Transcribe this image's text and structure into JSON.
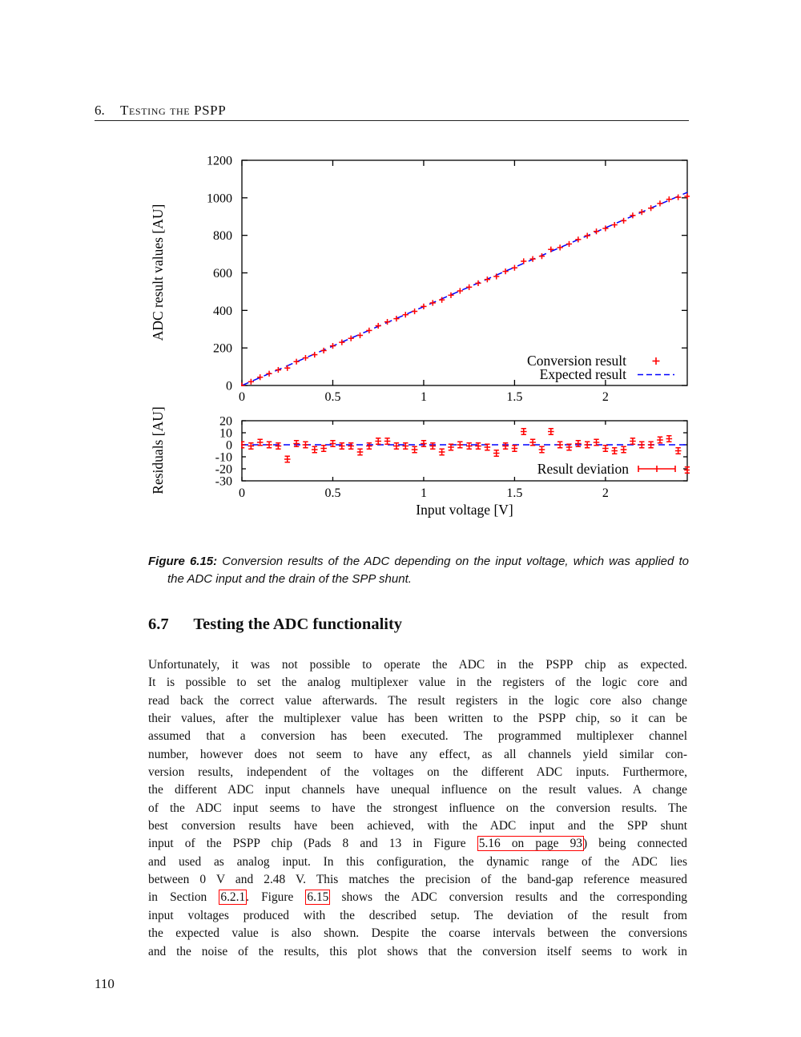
{
  "header": {
    "chapter_number": "6.",
    "chapter_title": "Testing the PSPP"
  },
  "figure": {
    "caption_label": "Figure 6.15:",
    "caption_line1": "Conversion results of the ADC depending on the input voltage, which was applied to",
    "caption_line2": "the ADC input and the drain of the SPP shunt."
  },
  "section": {
    "number": "6.7",
    "title": "Testing the ADC functionality"
  },
  "paragraph": {
    "lines": [
      [
        {
          "t": "Unfortunately, it was not possible to operate the ADC in the PSPP chip as expected."
        }
      ],
      [
        {
          "t": "It is possible to set the analog multiplexer value in the registers of the logic core and"
        }
      ],
      [
        {
          "t": "read back the correct value afterwards. The result registers in the logic core also change"
        }
      ],
      [
        {
          "t": "their values, after the multiplexer value has been written to the PSPP chip, so it can be"
        }
      ],
      [
        {
          "t": "assumed that a conversion has been executed. The programmed multiplexer channel"
        }
      ],
      [
        {
          "t": "number, however does not seem to have any effect, as all channels yield similar con-"
        }
      ],
      [
        {
          "t": "version results, independent of the voltages on the different ADC inputs. Furthermore,"
        }
      ],
      [
        {
          "t": "the different ADC input channels have unequal influence on the result values. A change"
        }
      ],
      [
        {
          "t": "of the ADC input seems to have the strongest influence on the conversion results. The"
        }
      ],
      [
        {
          "t": "best conversion results have been achieved, with the ADC input and the SPP shunt"
        }
      ],
      [
        {
          "t": "input of the PSPP chip (Pads 8 and 13 in Figure "
        },
        {
          "t": "5.16 on page 93",
          "link": true
        },
        {
          "t": ") being connected"
        }
      ],
      [
        {
          "t": "and used as analog input. In this configuration, the dynamic range of the ADC lies"
        }
      ],
      [
        {
          "t": "between 0 V and 2.48 V. This matches the precision of the band-gap reference measured"
        }
      ],
      [
        {
          "t": "in Section "
        },
        {
          "t": "6.2.1",
          "link": true
        },
        {
          "t": ". Figure "
        },
        {
          "t": "6.15",
          "link": true
        },
        {
          "t": " shows the ADC conversion results and the corresponding"
        }
      ],
      [
        {
          "t": "input voltages produced with the described setup. The deviation of the result from"
        }
      ],
      [
        {
          "t": "the expected value is also shown. Despite the coarse intervals between the conversions"
        }
      ],
      [
        {
          "t": "and the noise of the results, this plot shows that the conversion itself seems to work in"
        }
      ]
    ]
  },
  "page_number": "110",
  "colors": {
    "data_red": "#ff0000",
    "data_blue": "#0000ff",
    "link_box": "#ff0000",
    "text": "#111111"
  },
  "chart_data": [
    {
      "type": "scatter",
      "title": "",
      "xlabel": "",
      "ylabel": "ADC result values [AU]",
      "xlim": [
        0,
        2.45
      ],
      "ylim": [
        0,
        1200
      ],
      "xticks": [
        "0",
        "0.5",
        "1",
        "1.5",
        "2"
      ],
      "xtick_values": [
        0,
        0.5,
        1,
        1.5,
        2
      ],
      "yticks": [
        "0",
        "200",
        "400",
        "600",
        "800",
        "1000",
        "1200"
      ],
      "ytick_values": [
        0,
        200,
        400,
        600,
        800,
        1000,
        1200
      ],
      "grid": false,
      "legend_position": "bottom-right",
      "series": [
        {
          "name": "Conversion result",
          "type": "points",
          "marker": "plus",
          "color": "#ff0000",
          "x": [
            0,
            0.05,
            0.1,
            0.15,
            0.2,
            0.25,
            0.3,
            0.35,
            0.4,
            0.45,
            0.5,
            0.55,
            0.6,
            0.65,
            0.7,
            0.75,
            0.8,
            0.85,
            0.9,
            0.95,
            1,
            1.05,
            1.1,
            1.15,
            1.2,
            1.25,
            1.3,
            1.35,
            1.4,
            1.45,
            1.5,
            1.55,
            1.6,
            1.65,
            1.7,
            1.75,
            1.8,
            1.85,
            1.9,
            1.95,
            2,
            2.05,
            2.1,
            2.15,
            2.2,
            2.25,
            2.3,
            2.35,
            2.4,
            2.45
          ],
          "y": [
            0,
            20,
            44,
            63,
            83,
            93,
            127,
            147,
            164,
            186,
            211,
            230,
            251,
            267,
            293,
            318,
            339,
            356,
            377,
            395,
            421,
            440,
            456,
            481,
            504,
            524,
            545,
            565,
            581,
            608,
            627,
            662,
            674,
            689,
            725,
            735,
            754,
            778,
            798,
            821,
            837,
            856,
            878,
            906,
            924,
            945,
            970,
            992,
            1003,
            1008
          ]
        },
        {
          "name": "Expected result",
          "type": "line",
          "style": "dashed",
          "color": "#0000ff",
          "x": [
            0,
            2.45
          ],
          "y": [
            0,
            1029
          ]
        }
      ]
    },
    {
      "type": "scatter",
      "title": "",
      "xlabel": "Input voltage [V]",
      "ylabel": "Residuals [AU]",
      "xlim": [
        0,
        2.45
      ],
      "ylim": [
        -30,
        20
      ],
      "xticks": [
        "0",
        "0.5",
        "1",
        "1.5",
        "2"
      ],
      "xtick_values": [
        0,
        0.5,
        1,
        1.5,
        2
      ],
      "yticks": [
        "-30",
        "-20",
        "-10",
        "0",
        "10",
        "20"
      ],
      "ytick_values": [
        -30,
        -20,
        -10,
        0,
        10,
        20
      ],
      "grid": false,
      "legend_position": "bottom-right",
      "series": [
        {
          "name": "Result deviation",
          "type": "errorbars",
          "marker": "plus-errorbar",
          "color": "#ff0000",
          "yerr": 2.5,
          "x": [
            0,
            0.05,
            0.1,
            0.15,
            0.2,
            0.25,
            0.3,
            0.35,
            0.4,
            0.45,
            0.5,
            0.55,
            0.6,
            0.65,
            0.7,
            0.75,
            0.8,
            0.85,
            0.9,
            0.95,
            1,
            1.05,
            1.1,
            1.15,
            1.2,
            1.25,
            1.3,
            1.35,
            1.4,
            1.45,
            1.5,
            1.55,
            1.6,
            1.65,
            1.7,
            1.75,
            1.8,
            1.85,
            1.9,
            1.95,
            2,
            2.05,
            2.1,
            2.15,
            2.2,
            2.25,
            2.3,
            2.35,
            2.4,
            2.45
          ],
          "y": [
            0,
            -1,
            2,
            0,
            -1,
            -12,
            1,
            0,
            -4,
            -3,
            1,
            -1,
            -1,
            -6,
            -1,
            3,
            3,
            -1,
            -1,
            -4,
            1,
            -1,
            -6,
            -2,
            0,
            -1,
            -1,
            -2,
            -7,
            -1,
            -3,
            11,
            2,
            -4,
            11,
            0,
            -2,
            1,
            0,
            2,
            -3,
            -5,
            -4,
            3,
            0,
            0,
            4,
            5,
            -5,
            -21
          ]
        },
        {
          "name": "Expected result",
          "show_in_legend": false,
          "type": "line",
          "style": "dashed",
          "color": "#0000ff",
          "x": [
            0,
            2.45
          ],
          "y": [
            0,
            0
          ]
        }
      ]
    }
  ]
}
